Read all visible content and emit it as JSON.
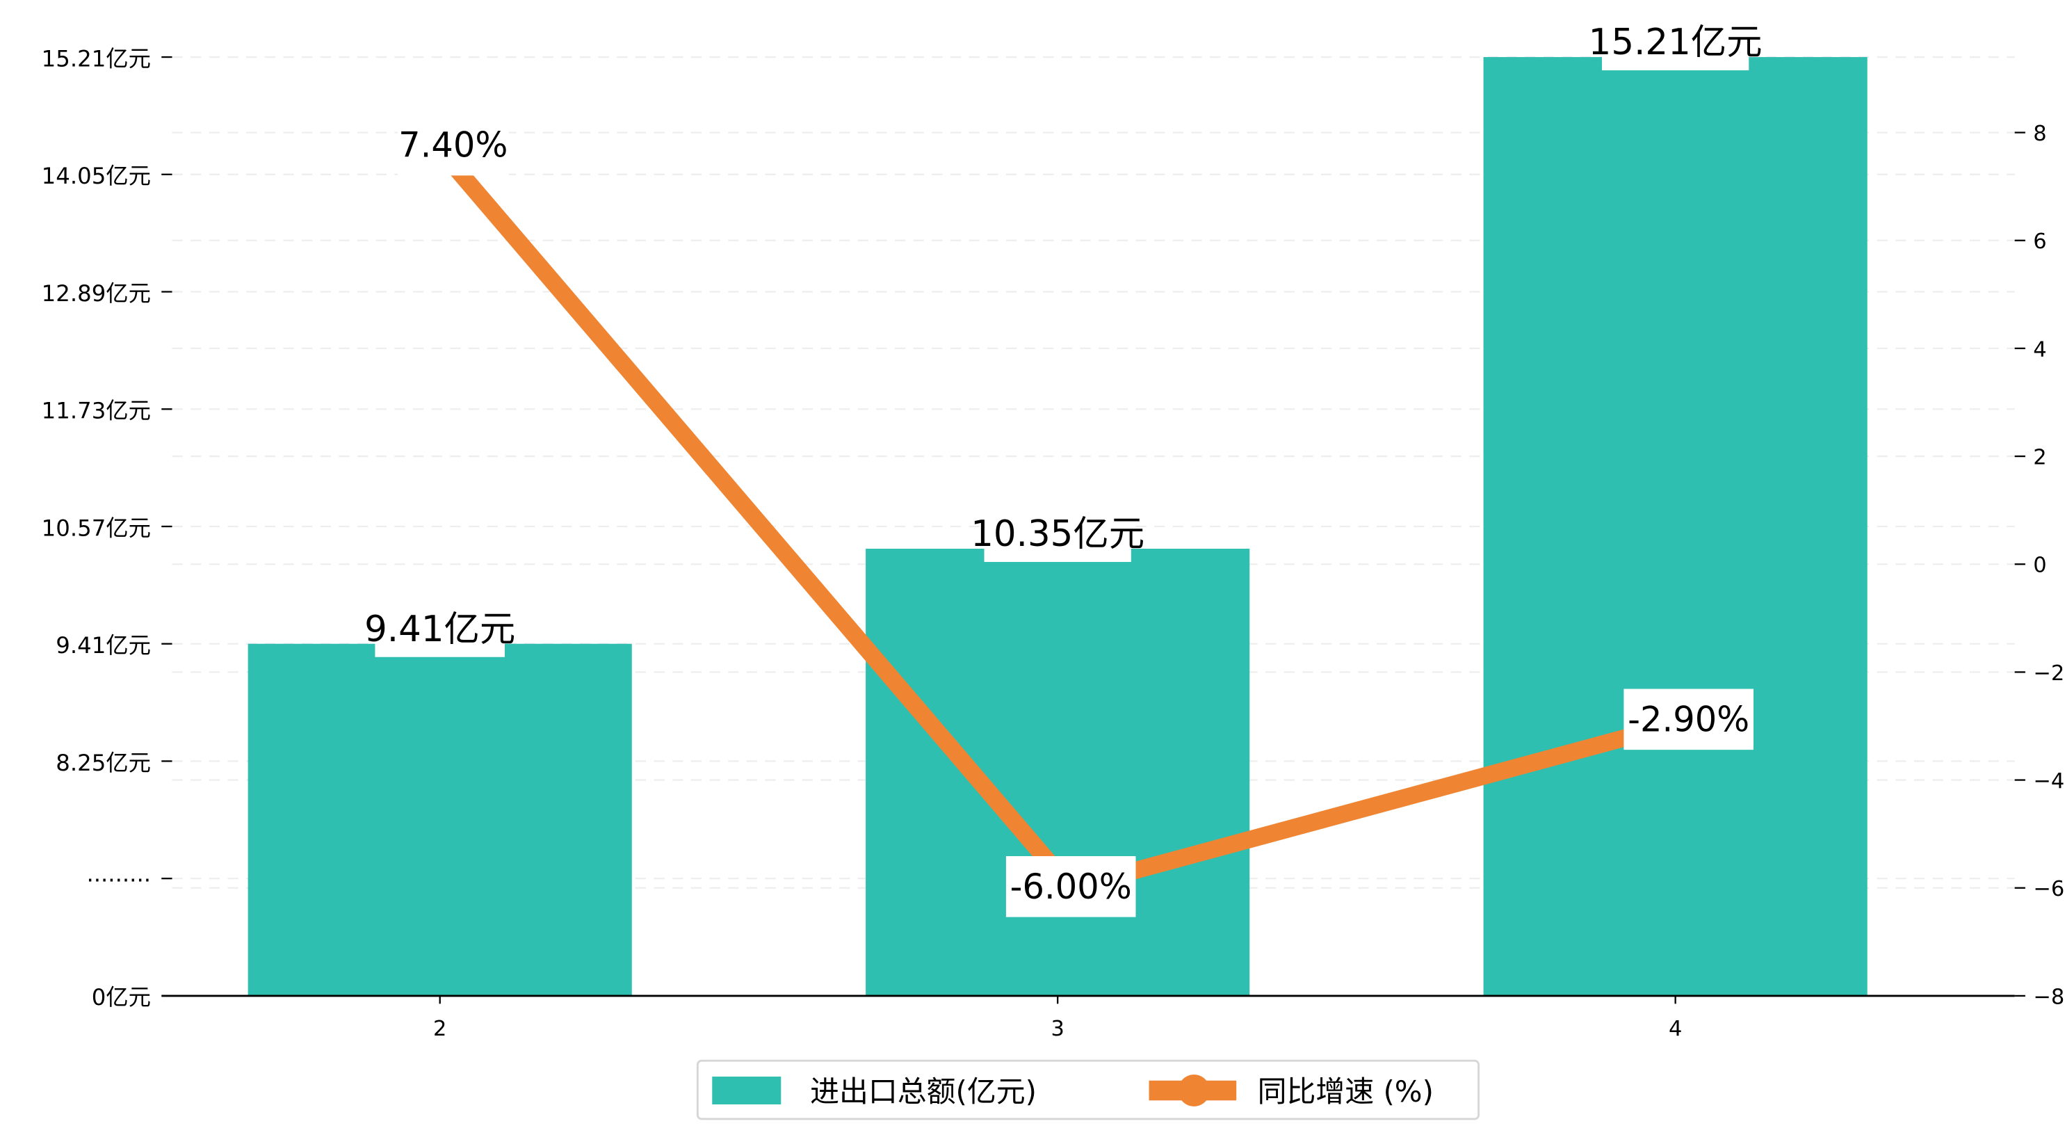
{
  "chart_data": {
    "type": "bar+line",
    "title": "",
    "categories": [
      "2",
      "3",
      "4"
    ],
    "series": [
      {
        "name": "进出口总额(亿元)",
        "type": "bar",
        "axis": "left",
        "color": "#2ebfb0",
        "values": [
          9.41,
          10.35,
          15.21
        ],
        "labels": [
          "9.41亿元",
          "10.35亿元",
          "15.21亿元"
        ]
      },
      {
        "name": "同比增速 (%)",
        "type": "line",
        "axis": "right",
        "color": "#ef8532",
        "values": [
          7.4,
          -6.0,
          -2.9
        ],
        "labels": [
          "7.40%",
          "-6.00%",
          "-2.90%"
        ]
      }
    ],
    "left_axis": {
      "broken": true,
      "ticks": [
        {
          "label": "0亿元",
          "value": 5.93
        },
        {
          "label": "·········",
          "value": 7.09
        },
        {
          "label": "8.25亿元",
          "value": 8.25
        },
        {
          "label": "9.41亿元",
          "value": 9.41
        },
        {
          "label": "10.57亿元",
          "value": 10.57
        },
        {
          "label": "11.73亿元",
          "value": 11.73
        },
        {
          "label": "12.89亿元",
          "value": 12.89
        },
        {
          "label": "14.05亿元",
          "value": 14.05
        },
        {
          "label": "15.21亿元",
          "value": 15.21
        }
      ],
      "range": [
        5.93,
        15.21
      ]
    },
    "right_axis": {
      "ticks": [
        -8,
        -6,
        -4,
        -2,
        0,
        2,
        4,
        6,
        8
      ],
      "range": [
        -8,
        8
      ]
    },
    "grid": true,
    "legend_position": "bottom-center"
  }
}
